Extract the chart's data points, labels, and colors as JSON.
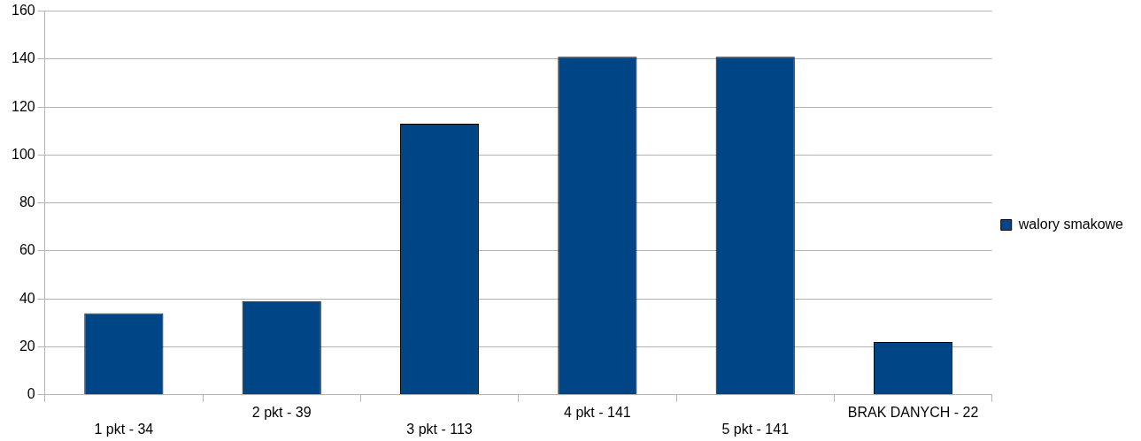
{
  "chart_data": {
    "type": "bar",
    "categories": [
      "1 pkt - 34",
      "2 pkt - 39",
      "3 pkt - 113",
      "4 pkt - 141",
      "5 pkt - 141",
      "BRAK DANYCH - 22"
    ],
    "series": [
      {
        "name": "walory smakowe",
        "color": "#004586",
        "values": [
          34,
          39,
          113,
          141,
          141,
          22
        ]
      }
    ],
    "ylim": [
      0,
      160
    ],
    "yticks": [
      0,
      20,
      40,
      60,
      80,
      100,
      120,
      140,
      160
    ],
    "grid": "y",
    "legend": "right"
  }
}
